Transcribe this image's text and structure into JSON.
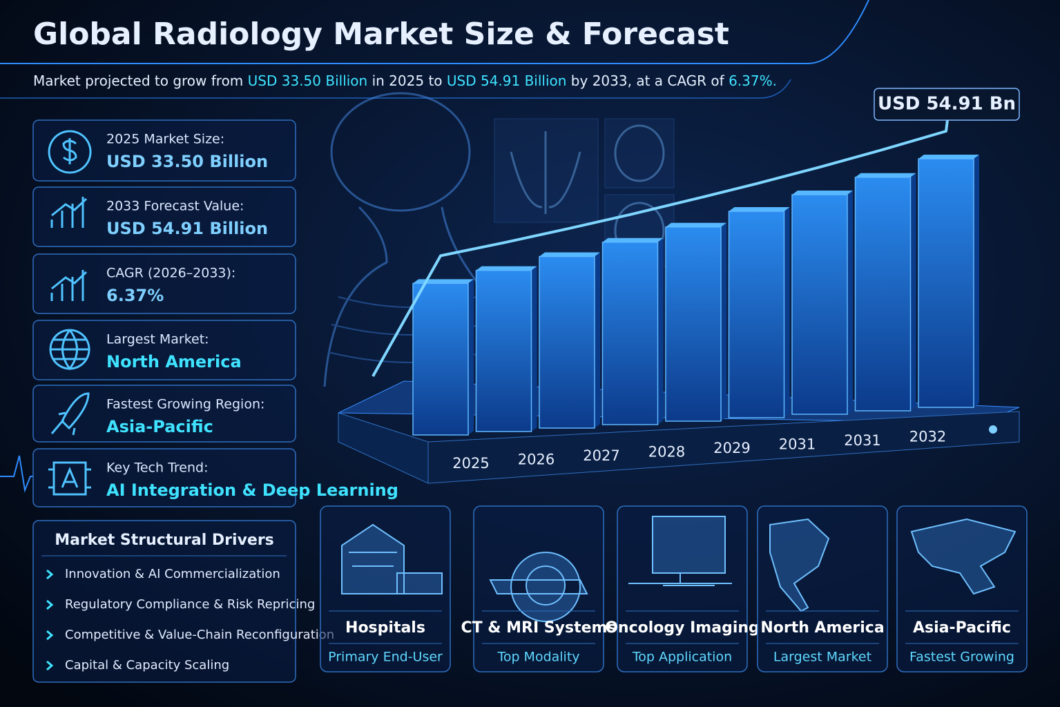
{
  "header": {
    "title": "Global Radiology Market Size & Forecast",
    "subtitle": [
      {
        "text": "Market projected to grow from ",
        "highlight": false
      },
      {
        "text": "USD 33.50 Billion",
        "highlight": true
      },
      {
        "text": " in 2025 to ",
        "highlight": false
      },
      {
        "text": "USD 54.91 Billion",
        "highlight": true
      },
      {
        "text": " by 2033, at a CAGR of ",
        "highlight": false
      },
      {
        "text": "6.37%.",
        "highlight": true
      }
    ]
  },
  "stats": [
    {
      "label": "2025 Market Size:",
      "value": "USD 33.50 Billion"
    },
    {
      "label": "2033 Forecast Value:",
      "value": "USD 54.91 Billion"
    },
    {
      "label": "CAGR (2026–2033):",
      "value": "6.37%"
    },
    {
      "label": "Largest Market:",
      "value": "North America"
    },
    {
      "label": "Fastest Growing Region:",
      "value": "Asia-Pacific"
    },
    {
      "label": "Key Tech Trend:",
      "value": "AI Integration & Deep Learning"
    }
  ],
  "drivers": {
    "title": "Market Structural Drivers",
    "items": [
      "Innovation & AI Commercialization",
      "Regulatory Compliance & Risk Repricing",
      "Competitive & Value-Chain Reconfiguration",
      "Capital & Capacity Scaling"
    ]
  },
  "segments": [
    {
      "title": "Hospitals",
      "subtitle": "Primary End-User"
    },
    {
      "title": "CT & MRI Systems",
      "subtitle": "Top Modality"
    },
    {
      "title": "Oncology Imaging",
      "subtitle": "Top Application"
    },
    {
      "title": "North America",
      "subtitle": "Largest Market"
    },
    {
      "title": "Asia-Pacific",
      "subtitle": "Fastest Growing"
    }
  ],
  "chart_data": {
    "type": "bar",
    "annotation": "USD 54.91 Bn",
    "color": "#1f6fd6",
    "categories": [
      "2025",
      "2026",
      "2027",
      "2028",
      "2029",
      "2031",
      "2031",
      "2032",
      null
    ],
    "values": [
      33.5,
      35.6,
      37.9,
      40.3,
      42.9,
      45.6,
      48.5,
      51.6,
      54.91
    ]
  }
}
